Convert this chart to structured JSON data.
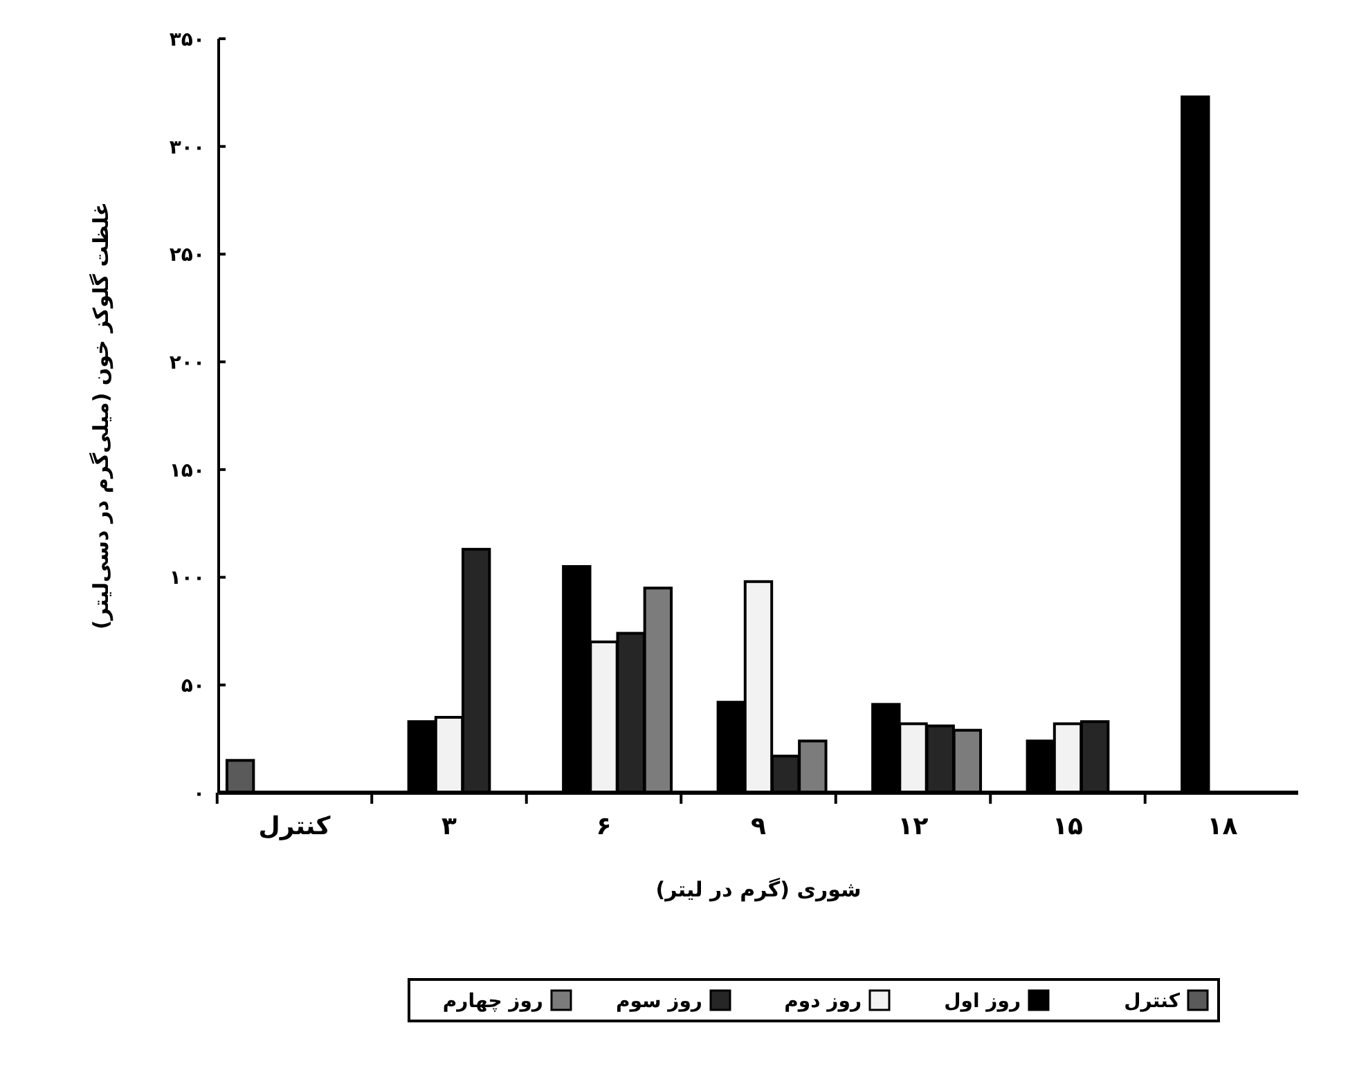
{
  "chart_data": {
    "type": "bar",
    "xlabel": "شوری (گرم در لیتر)",
    "ylabel": "غلظت گلوکز خون (میلی‌گرم در دسی‌لیتر)",
    "categories": [
      "کنترل",
      "۳",
      "۶",
      "۹",
      "۱۲",
      "۱۵",
      "۱۸"
    ],
    "series": [
      {
        "name": "کنترل",
        "color": "#5a5a5a",
        "values": [
          15,
          null,
          null,
          null,
          null,
          null,
          null
        ]
      },
      {
        "name": "روز اول",
        "color": "#000000",
        "values": [
          null,
          33,
          105,
          42,
          41,
          24,
          323
        ]
      },
      {
        "name": "روز دوم",
        "color": "#f2f2f2",
        "values": [
          null,
          35,
          70,
          98,
          32,
          32,
          null
        ]
      },
      {
        "name": "روز سوم",
        "color": "#262626",
        "values": [
          null,
          113,
          74,
          17,
          31,
          33,
          null
        ]
      },
      {
        "name": "روز چهارم",
        "color": "#7c7c7c",
        "values": [
          null,
          null,
          95,
          24,
          29,
          null,
          null
        ]
      }
    ],
    "ylim": [
      0,
      350
    ],
    "yticks": [
      {
        "value": 0,
        "label": "۰"
      },
      {
        "value": 50,
        "label": "۵۰"
      },
      {
        "value": 100,
        "label": "۱۰۰"
      },
      {
        "value": 150,
        "label": "۱۵۰"
      },
      {
        "value": 200,
        "label": "۲۰۰"
      },
      {
        "value": 250,
        "label": "۲۵۰"
      },
      {
        "value": 300,
        "label": "۳۰۰"
      },
      {
        "value": 350,
        "label": "۳۵۰"
      }
    ],
    "grid": false,
    "legend": "bottom"
  }
}
